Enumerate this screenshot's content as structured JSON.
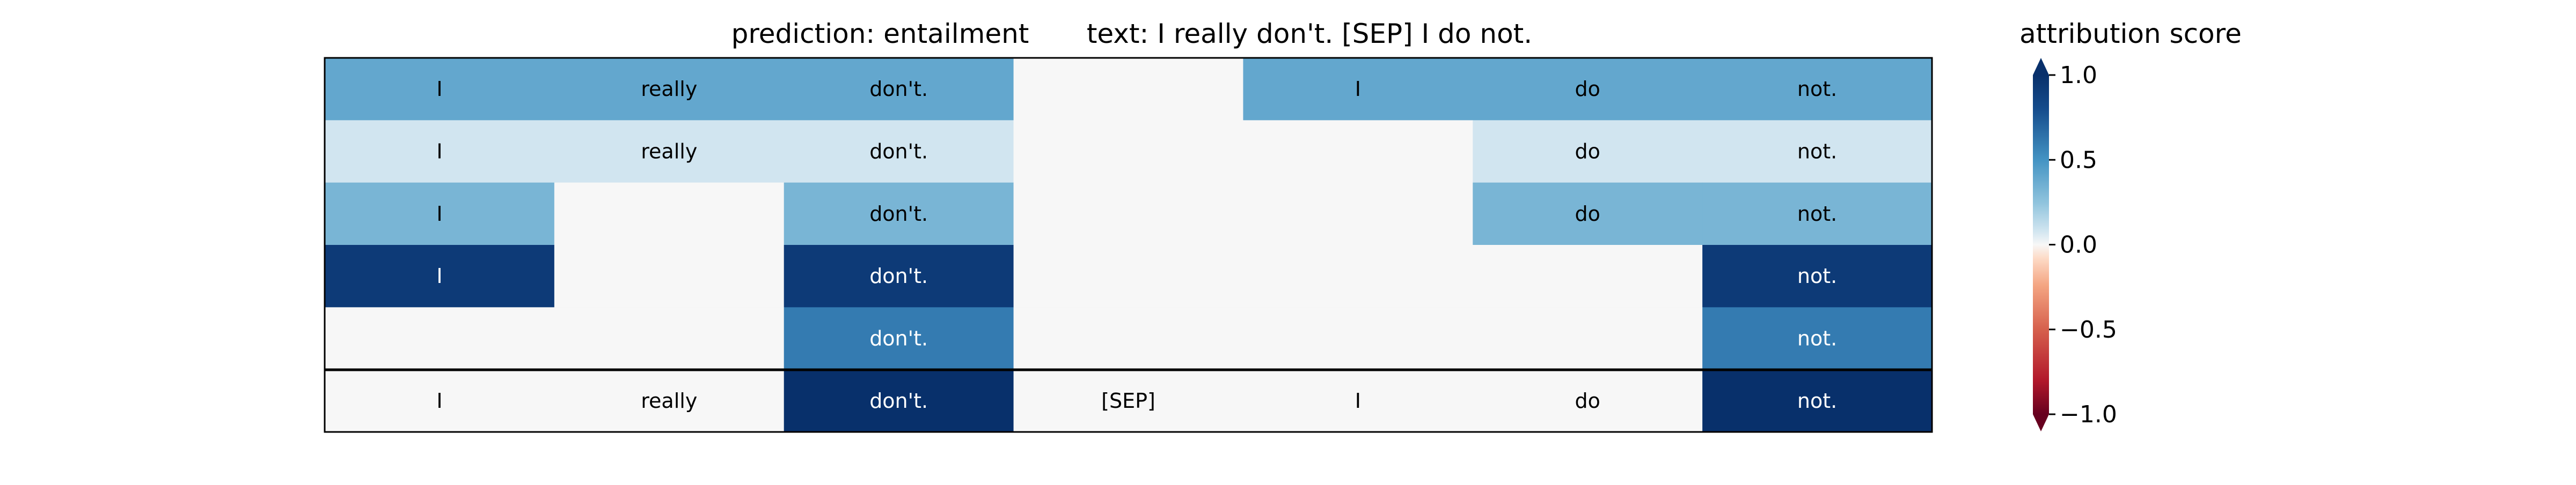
{
  "chart_data": {
    "type": "heatmap",
    "title_prediction": "prediction:  entailment",
    "title_text": "text:  I really don't. [SEP] I do not.",
    "colorbar_title": "attribution score",
    "colormap": "RdBu",
    "vmin": -1.0,
    "vmax": 1.0,
    "colorbar_ticks": [
      "1.0",
      "0.5",
      "0.0",
      "−0.5",
      "−1.0"
    ],
    "colorbar_tick_values": [
      1.0,
      0.5,
      0.0,
      -0.5,
      -1.0
    ],
    "columns": 7,
    "rows": [
      {
        "tokens": [
          "I",
          "really",
          "don't.",
          "",
          "I",
          "do",
          "not."
        ],
        "values": [
          0.4,
          0.4,
          0.4,
          0.0,
          0.4,
          0.4,
          0.4
        ]
      },
      {
        "tokens": [
          "I",
          "really",
          "don't.",
          "",
          "",
          "do",
          "not."
        ],
        "values": [
          0.08,
          0.08,
          0.08,
          0.0,
          0.0,
          0.08,
          0.08
        ]
      },
      {
        "tokens": [
          "I",
          "",
          "don't.",
          "",
          "",
          "do",
          "not."
        ],
        "values": [
          0.33,
          0.0,
          0.33,
          0.0,
          0.0,
          0.33,
          0.33
        ]
      },
      {
        "tokens": [
          "I",
          "",
          "don't.",
          "",
          "",
          "",
          "not."
        ],
        "values": [
          0.93,
          0.0,
          0.93,
          0.0,
          0.0,
          0.0,
          0.93
        ]
      },
      {
        "tokens": [
          "",
          "",
          "don't.",
          "",
          "",
          "",
          "not."
        ],
        "values": [
          0.0,
          0.0,
          0.6,
          0.0,
          0.0,
          0.0,
          0.6
        ]
      },
      {
        "tokens": [
          "I",
          "really",
          "don't.",
          "[SEP]",
          "I",
          "do",
          "not."
        ],
        "values": [
          0.0,
          0.0,
          1.0,
          0.0,
          0.0,
          0.0,
          1.0
        ]
      }
    ]
  }
}
